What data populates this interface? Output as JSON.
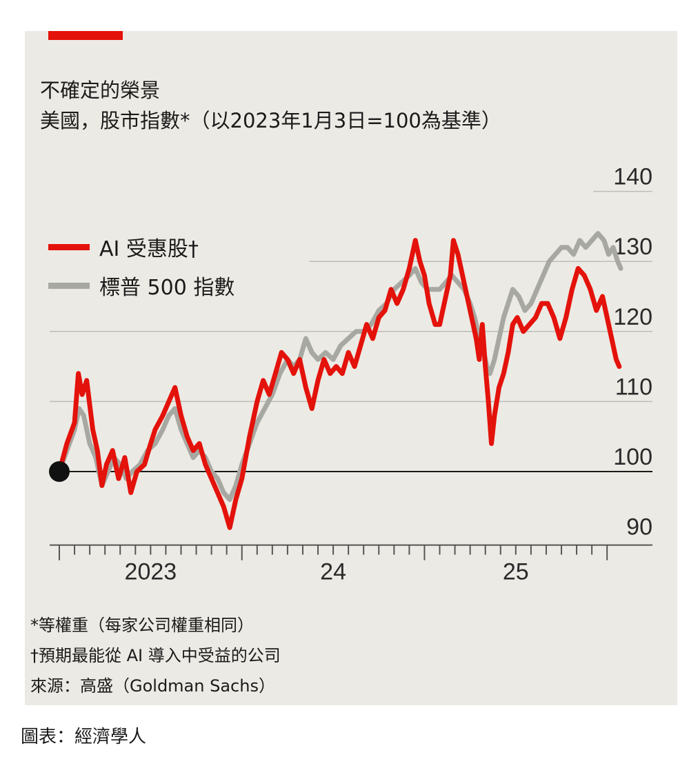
{
  "header": {
    "title": "不確定的榮景",
    "subtitle": "美國，股市指數*（以2023年1月3日=100為基準）"
  },
  "legend": [
    {
      "label": "AI 受惠股†",
      "color": "#e3120b"
    },
    {
      "label": "標普 500 指數",
      "color": "#a8a8a2"
    }
  ],
  "footnotes": {
    "note1": "*等權重（每家公司權重相同）",
    "note2": "†預期最能從 AI 導入中受益的公司",
    "source": "來源：高盛（Goldman Sachs）"
  },
  "credit": "圖表：經濟學人",
  "colors": {
    "ai": "#e3120b",
    "sp500": "#a8a8a2",
    "panel": "#eceae4",
    "baseline": "#1a1a1a"
  },
  "chart_data": {
    "type": "line",
    "ylim": [
      90,
      140
    ],
    "yticks": [
      "90",
      "100",
      "110",
      "120",
      "130",
      "140"
    ],
    "xtick_labels": [
      {
        "label": "2023",
        "month": 6
      },
      {
        "label": "24",
        "month": 18
      },
      {
        "label": "25",
        "month": 30
      }
    ],
    "x_unit": "months since Jan 2023",
    "baseline": 100,
    "series": [
      {
        "name": "AI 受惠股†",
        "color": "#e3120b",
        "points": [
          [
            0,
            100
          ],
          [
            0.5,
            104
          ],
          [
            1,
            107
          ],
          [
            1.25,
            114
          ],
          [
            1.5,
            111
          ],
          [
            1.8,
            113
          ],
          [
            2.2,
            106
          ],
          [
            2.5,
            103
          ],
          [
            2.8,
            98
          ],
          [
            3.1,
            101
          ],
          [
            3.5,
            103
          ],
          [
            3.9,
            99
          ],
          [
            4.3,
            102
          ],
          [
            4.7,
            97
          ],
          [
            5.1,
            100
          ],
          [
            5.6,
            101
          ],
          [
            6,
            104
          ],
          [
            6.3,
            106
          ],
          [
            6.8,
            108
          ],
          [
            7.2,
            110
          ],
          [
            7.6,
            112
          ],
          [
            8,
            108
          ],
          [
            8.4,
            105
          ],
          [
            8.8,
            103
          ],
          [
            9.2,
            104
          ],
          [
            9.6,
            101
          ],
          [
            10,
            99
          ],
          [
            10.4,
            97
          ],
          [
            10.8,
            95
          ],
          [
            11.2,
            92
          ],
          [
            11.6,
            96
          ],
          [
            12,
            99
          ],
          [
            12.5,
            105
          ],
          [
            13,
            110
          ],
          [
            13.4,
            113
          ],
          [
            13.8,
            111
          ],
          [
            14.2,
            114
          ],
          [
            14.6,
            117
          ],
          [
            15,
            116
          ],
          [
            15.4,
            114
          ],
          [
            15.8,
            116
          ],
          [
            16.2,
            112
          ],
          [
            16.6,
            109
          ],
          [
            17,
            113
          ],
          [
            17.4,
            116
          ],
          [
            17.8,
            114
          ],
          [
            18.2,
            115
          ],
          [
            18.6,
            114
          ],
          [
            19,
            117
          ],
          [
            19.4,
            115
          ],
          [
            19.8,
            118
          ],
          [
            20.2,
            121
          ],
          [
            20.6,
            119
          ],
          [
            21,
            122
          ],
          [
            21.4,
            123
          ],
          [
            21.8,
            126
          ],
          [
            22.2,
            124
          ],
          [
            22.6,
            126
          ],
          [
            23,
            129
          ],
          [
            23.4,
            133
          ],
          [
            23.7,
            130
          ],
          [
            24,
            128
          ],
          [
            24.3,
            124
          ],
          [
            24.7,
            121
          ],
          [
            25,
            121
          ],
          [
            25.4,
            125
          ],
          [
            25.7,
            128
          ],
          [
            25.9,
            133
          ],
          [
            26.2,
            131
          ],
          [
            26.5,
            128
          ],
          [
            26.8,
            125
          ],
          [
            27.1,
            122
          ],
          [
            27.4,
            119
          ],
          [
            27.6,
            116
          ],
          [
            27.8,
            121
          ],
          [
            28,
            115
          ],
          [
            28.2,
            110
          ],
          [
            28.4,
            104
          ],
          [
            28.6,
            108
          ],
          [
            28.9,
            112
          ],
          [
            29.2,
            114
          ],
          [
            29.5,
            117
          ],
          [
            29.8,
            121
          ],
          [
            30.1,
            122
          ],
          [
            30.5,
            120
          ],
          [
            30.9,
            121
          ],
          [
            31.3,
            122
          ],
          [
            31.7,
            124
          ],
          [
            32.1,
            124
          ],
          [
            32.5,
            122
          ],
          [
            32.9,
            119
          ],
          [
            33.3,
            122
          ],
          [
            33.7,
            126
          ],
          [
            34.1,
            129
          ],
          [
            34.5,
            128
          ],
          [
            34.9,
            126
          ],
          [
            35.3,
            123
          ],
          [
            35.7,
            125
          ],
          [
            36,
            122
          ],
          [
            36.3,
            119
          ],
          [
            36.6,
            116
          ],
          [
            36.8,
            115
          ]
        ]
      },
      {
        "name": "標普 500 指數",
        "color": "#a8a8a2",
        "points": [
          [
            0,
            100
          ],
          [
            0.5,
            103
          ],
          [
            1,
            106
          ],
          [
            1.3,
            109
          ],
          [
            1.6,
            108
          ],
          [
            2,
            104
          ],
          [
            2.4,
            102
          ],
          [
            2.8,
            98
          ],
          [
            3.2,
            100
          ],
          [
            3.6,
            102
          ],
          [
            4,
            101
          ],
          [
            4.4,
            99
          ],
          [
            4.8,
            100
          ],
          [
            5.3,
            101
          ],
          [
            5.8,
            103
          ],
          [
            6.3,
            104
          ],
          [
            6.8,
            106
          ],
          [
            7.2,
            108
          ],
          [
            7.6,
            109
          ],
          [
            8,
            106
          ],
          [
            8.4,
            104
          ],
          [
            8.8,
            102
          ],
          [
            9.2,
            103
          ],
          [
            9.6,
            102
          ],
          [
            10,
            100
          ],
          [
            10.4,
            99
          ],
          [
            10.8,
            97
          ],
          [
            11.2,
            96
          ],
          [
            11.6,
            98
          ],
          [
            12,
            101
          ],
          [
            12.5,
            104
          ],
          [
            13,
            107
          ],
          [
            13.5,
            109
          ],
          [
            14,
            111
          ],
          [
            14.5,
            114
          ],
          [
            15,
            116
          ],
          [
            15.4,
            115
          ],
          [
            15.8,
            116
          ],
          [
            16.2,
            119
          ],
          [
            16.6,
            117
          ],
          [
            17,
            116
          ],
          [
            17.5,
            117
          ],
          [
            18,
            116
          ],
          [
            18.5,
            118
          ],
          [
            19,
            119
          ],
          [
            19.5,
            120
          ],
          [
            20,
            120
          ],
          [
            20.5,
            121
          ],
          [
            21,
            123
          ],
          [
            21.5,
            124
          ],
          [
            22,
            126
          ],
          [
            22.5,
            127
          ],
          [
            23,
            128
          ],
          [
            23.4,
            129
          ],
          [
            23.8,
            127
          ],
          [
            24.2,
            126
          ],
          [
            24.6,
            126
          ],
          [
            25,
            126
          ],
          [
            25.4,
            127
          ],
          [
            25.8,
            128
          ],
          [
            26.2,
            127
          ],
          [
            26.6,
            126
          ],
          [
            27,
            124
          ],
          [
            27.3,
            122
          ],
          [
            27.6,
            119
          ],
          [
            27.9,
            117
          ],
          [
            28.1,
            115
          ],
          [
            28.3,
            114
          ],
          [
            28.6,
            116
          ],
          [
            28.9,
            119
          ],
          [
            29.2,
            122
          ],
          [
            29.5,
            124
          ],
          [
            29.8,
            126
          ],
          [
            30.2,
            125
          ],
          [
            30.6,
            123
          ],
          [
            31,
            124
          ],
          [
            31.4,
            126
          ],
          [
            31.8,
            128
          ],
          [
            32.2,
            130
          ],
          [
            32.6,
            131
          ],
          [
            33,
            132
          ],
          [
            33.4,
            132
          ],
          [
            33.8,
            131
          ],
          [
            34.2,
            133
          ],
          [
            34.6,
            132
          ],
          [
            35,
            133
          ],
          [
            35.4,
            134
          ],
          [
            35.8,
            133
          ],
          [
            36.1,
            131
          ],
          [
            36.4,
            132
          ],
          [
            36.7,
            130
          ],
          [
            36.9,
            129
          ]
        ]
      }
    ]
  }
}
